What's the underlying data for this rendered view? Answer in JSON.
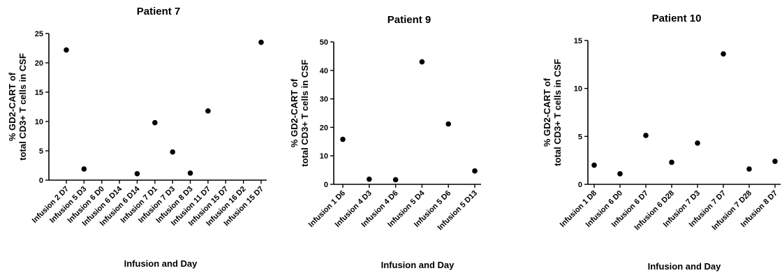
{
  "chart_data": [
    {
      "type": "scatter",
      "title": "Patient 7",
      "ylabel": [
        "% GD2-CART of",
        "total CD3+ T cells in CSF"
      ],
      "xlabel": "Infusion and Day",
      "categories": [
        "Infusion 2 D7",
        "Infusion 5 D3",
        "Infusion 6 D0",
        "Infusion 6 D14",
        "Infusion 6 D14",
        "Infusion 7 D1",
        "Infusion 7 D3",
        "Infusion 8 D3",
        "Infusion 11 D7",
        "Infusion 15 D7",
        "Infusion 16 D2",
        "Infusion 15 D7"
      ],
      "values": [
        22.2,
        1.9,
        null,
        null,
        1.1,
        9.8,
        4.8,
        1.2,
        11.8,
        null,
        null,
        23.5
      ],
      "ylim": [
        0,
        25
      ],
      "yticks": [
        0,
        5,
        10,
        15,
        20,
        25
      ]
    },
    {
      "type": "scatter",
      "title": "Patient 9",
      "ylabel": [
        "% GD2-CART of",
        "total CD3+ T cells in CSF"
      ],
      "xlabel": "Infusion and Day",
      "categories": [
        "Infusion 1 D6",
        "Infusion 4 D3",
        "Infusion 4 D6",
        "Infusion 5 D4",
        "Infusion 5 D6",
        "Infusion 5 D13"
      ],
      "values": [
        15.8,
        1.8,
        1.6,
        43.0,
        21.2,
        4.7
      ],
      "ylim": [
        0,
        50
      ],
      "yticks": [
        0,
        10,
        20,
        30,
        40,
        50
      ]
    },
    {
      "type": "scatter",
      "title": "Patient 10",
      "ylabel": [
        "% GD2-CART of",
        "total CD3+ T cells in CSF"
      ],
      "xlabel": "Infusion and Day",
      "categories": [
        "Infusion 1 D8",
        "Infusion 6 D0",
        "Infusion 6 D7",
        "Infusion 6 D28",
        "Infusion 7 D3",
        "Infusion 7 D7",
        "Infusion 7 D28",
        "Infusion 8 D7"
      ],
      "values": [
        2.0,
        1.1,
        5.1,
        2.3,
        4.3,
        13.6,
        1.6,
        2.4
      ],
      "ylim": [
        0,
        15
      ],
      "yticks": [
        0,
        5,
        10,
        15
      ]
    }
  ]
}
